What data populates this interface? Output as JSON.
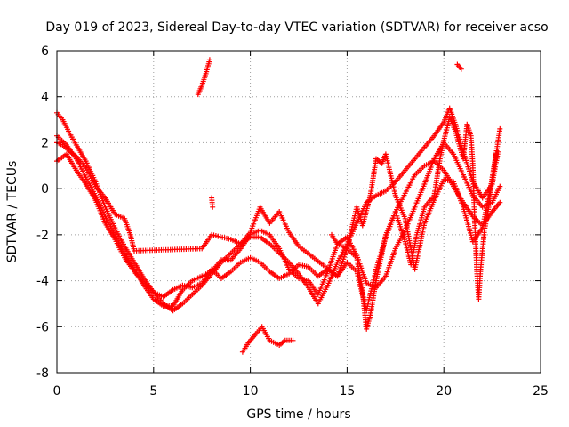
{
  "chart_data": {
    "type": "scatter",
    "title": "Day 019 of 2023, Sidereal Day-to-day VTEC variation (SDTVAR) for receiver acso",
    "xlabel": "GPS time / hours",
    "ylabel": "SDTVAR / TECUs",
    "xlim": [
      0,
      25
    ],
    "ylim": [
      -8,
      6
    ],
    "xticks": [
      "0",
      "5",
      "10",
      "15",
      "20",
      "25"
    ],
    "yticks": [
      "-8",
      "-6",
      "-4",
      "-2",
      "0",
      "2",
      "4",
      "6"
    ],
    "grid": true,
    "marker": "+",
    "series_color": "#ff0000",
    "series": [
      {
        "name": "s1",
        "points": [
          [
            0.0,
            3.3
          ],
          [
            0.3,
            3.0
          ],
          [
            0.6,
            2.5
          ],
          [
            1.0,
            1.9
          ],
          [
            1.5,
            1.2
          ],
          [
            2.0,
            0.3
          ],
          [
            2.5,
            -0.8
          ],
          [
            3.0,
            -1.7
          ],
          [
            3.5,
            -2.5
          ],
          [
            4.0,
            -3.2
          ],
          [
            4.5,
            -3.9
          ],
          [
            5.0,
            -4.5
          ],
          [
            5.5,
            -5.0
          ],
          [
            6.0,
            -5.3
          ],
          [
            6.5,
            -5.0
          ],
          [
            7.0,
            -4.6
          ],
          [
            7.5,
            -4.2
          ],
          [
            8.0,
            -3.7
          ],
          [
            8.5,
            -3.2
          ],
          [
            9.0,
            -2.8
          ],
          [
            9.5,
            -2.4
          ],
          [
            10.0,
            -2.1
          ],
          [
            10.5,
            -2.1
          ],
          [
            11.0,
            -2.4
          ],
          [
            11.5,
            -2.8
          ],
          [
            12.0,
            -3.2
          ],
          [
            12.5,
            -3.7
          ],
          [
            13.0,
            -4.3
          ],
          [
            13.5,
            -5.0
          ],
          [
            14.0,
            -4.2
          ],
          [
            14.5,
            -3.2
          ],
          [
            15.0,
            -2.4
          ],
          [
            15.5,
            -1.5
          ],
          [
            16.0,
            -0.6
          ],
          [
            16.5,
            -0.3
          ],
          [
            17.0,
            -0.1
          ],
          [
            17.5,
            0.3
          ],
          [
            18.0,
            0.8
          ],
          [
            18.5,
            1.3
          ],
          [
            19.0,
            1.8
          ],
          [
            19.5,
            2.3
          ],
          [
            20.0,
            2.9
          ],
          [
            20.3,
            3.5
          ],
          [
            20.6,
            2.8
          ],
          [
            21.0,
            1.6
          ],
          [
            21.5,
            0.3
          ],
          [
            22.0,
            -0.4
          ],
          [
            22.5,
            0.2
          ],
          [
            22.8,
            1.6
          ]
        ]
      },
      {
        "name": "s2",
        "points": [
          [
            0.0,
            2.3
          ],
          [
            0.5,
            1.9
          ],
          [
            1.0,
            1.3
          ],
          [
            1.5,
            0.5
          ],
          [
            2.0,
            -0.3
          ],
          [
            2.5,
            -1.2
          ],
          [
            3.0,
            -2.0
          ],
          [
            3.5,
            -2.8
          ],
          [
            4.0,
            -3.5
          ],
          [
            4.5,
            -4.2
          ],
          [
            5.0,
            -4.8
          ],
          [
            5.5,
            -5.1
          ],
          [
            6.0,
            -5.1
          ],
          [
            6.5,
            -4.4
          ],
          [
            7.0,
            -4.0
          ],
          [
            7.5,
            -3.8
          ],
          [
            8.0,
            -3.6
          ],
          [
            8.5,
            -3.1
          ],
          [
            9.0,
            -3.1
          ],
          [
            9.5,
            -2.6
          ],
          [
            10.0,
            -2.0
          ],
          [
            10.5,
            -1.8
          ],
          [
            11.0,
            -2.0
          ],
          [
            11.5,
            -2.6
          ],
          [
            12.0,
            -3.5
          ],
          [
            12.5,
            -3.9
          ],
          [
            13.0,
            -4.0
          ],
          [
            13.5,
            -4.6
          ],
          [
            14.0,
            -3.6
          ],
          [
            14.5,
            -2.4
          ],
          [
            15.0,
            -2.1
          ],
          [
            15.5,
            -2.9
          ],
          [
            16.0,
            -4.1
          ],
          [
            16.5,
            -4.3
          ],
          [
            17.0,
            -3.8
          ],
          [
            17.5,
            -2.6
          ],
          [
            18.0,
            -1.8
          ],
          [
            18.5,
            -0.8
          ],
          [
            19.0,
            0.2
          ],
          [
            19.5,
            1.3
          ],
          [
            20.0,
            2.0
          ],
          [
            20.5,
            1.5
          ],
          [
            21.0,
            0.6
          ],
          [
            21.5,
            -0.3
          ],
          [
            22.0,
            -0.8
          ],
          [
            22.5,
            -0.6
          ],
          [
            22.9,
            0.1
          ]
        ]
      },
      {
        "name": "s3",
        "points": [
          [
            0.0,
            1.2
          ],
          [
            0.5,
            1.5
          ],
          [
            1.0,
            0.8
          ],
          [
            1.5,
            0.2
          ],
          [
            2.0,
            -0.5
          ],
          [
            2.5,
            -1.5
          ],
          [
            3.0,
            -2.2
          ],
          [
            3.5,
            -3.0
          ],
          [
            4.0,
            -3.6
          ],
          [
            4.5,
            -4.1
          ],
          [
            5.0,
            -4.5
          ],
          [
            5.5,
            -4.7
          ],
          [
            6.0,
            -4.4
          ],
          [
            6.5,
            -4.2
          ],
          [
            7.0,
            -4.3
          ],
          [
            7.5,
            -4.1
          ],
          [
            8.0,
            -3.5
          ],
          [
            8.5,
            -3.9
          ],
          [
            9.0,
            -3.6
          ],
          [
            9.5,
            -3.2
          ],
          [
            10.0,
            -3.0
          ],
          [
            10.5,
            -3.2
          ],
          [
            11.0,
            -3.6
          ],
          [
            11.5,
            -3.9
          ],
          [
            12.0,
            -3.7
          ],
          [
            12.5,
            -3.3
          ],
          [
            13.0,
            -3.4
          ],
          [
            13.5,
            -3.8
          ],
          [
            14.0,
            -3.5
          ],
          [
            14.5,
            -3.8
          ],
          [
            15.0,
            -3.2
          ],
          [
            15.5,
            -3.6
          ],
          [
            16.0,
            -5.3
          ],
          [
            16.5,
            -3.5
          ],
          [
            17.0,
            -2.1
          ],
          [
            17.5,
            -1.0
          ],
          [
            18.0,
            -0.2
          ],
          [
            18.5,
            0.6
          ],
          [
            19.0,
            1.0
          ],
          [
            19.5,
            1.2
          ],
          [
            20.0,
            0.8
          ],
          [
            20.5,
            0.1
          ],
          [
            21.0,
            -0.6
          ],
          [
            21.5,
            -1.2
          ],
          [
            22.0,
            -1.6
          ],
          [
            22.5,
            -1.0
          ],
          [
            22.9,
            -0.6
          ]
        ]
      },
      {
        "name": "s4",
        "points": [
          [
            0.0,
            2.0
          ],
          [
            0.3,
            1.9
          ],
          [
            0.7,
            1.6
          ],
          [
            1.0,
            1.4
          ],
          [
            1.5,
            0.9
          ],
          [
            2.0,
            0.1
          ],
          [
            2.5,
            -0.4
          ],
          [
            3.0,
            -1.1
          ],
          [
            3.5,
            -1.3
          ],
          [
            3.8,
            -2.0
          ],
          [
            4.0,
            -2.7
          ],
          [
            7.5,
            -2.6
          ],
          [
            8.0,
            -2.0
          ],
          [
            9.0,
            -2.2
          ],
          [
            9.5,
            -2.4
          ],
          [
            10.0,
            -1.9
          ],
          [
            10.5,
            -0.8
          ],
          [
            11.0,
            -1.5
          ],
          [
            11.5,
            -1.0
          ],
          [
            12.0,
            -1.9
          ],
          [
            12.5,
            -2.5
          ],
          [
            14.5,
            -3.8
          ],
          [
            15.0,
            -2.6
          ],
          [
            15.5,
            -0.8
          ],
          [
            15.8,
            -1.6
          ],
          [
            16.2,
            -0.3
          ],
          [
            16.5,
            1.3
          ],
          [
            16.8,
            1.1
          ],
          [
            17.0,
            1.5
          ],
          [
            17.5,
            -0.3
          ],
          [
            18.0,
            -1.3
          ],
          [
            18.5,
            -3.5
          ],
          [
            19.0,
            -1.5
          ],
          [
            19.5,
            -0.5
          ],
          [
            20.0,
            0.4
          ],
          [
            20.5,
            0.3
          ],
          [
            21.0,
            -0.8
          ],
          [
            21.5,
            -2.3
          ],
          [
            22.0,
            -1.7
          ],
          [
            22.5,
            0.4
          ],
          [
            22.9,
            2.6
          ]
        ]
      },
      {
        "name": "s5",
        "points": [
          [
            14.2,
            -2.0
          ],
          [
            14.5,
            -2.4
          ],
          [
            15.0,
            -2.6
          ],
          [
            15.5,
            -3.0
          ],
          [
            15.8,
            -4.5
          ],
          [
            16.0,
            -6.1
          ],
          [
            16.2,
            -5.5
          ],
          [
            16.5,
            -4.0
          ],
          [
            16.8,
            -2.8
          ],
          [
            17.0,
            -2.0
          ],
          [
            17.5,
            -1.0
          ],
          [
            18.0,
            -2.3
          ],
          [
            18.3,
            -3.3
          ],
          [
            18.6,
            -2.0
          ],
          [
            19.0,
            -0.8
          ],
          [
            19.5,
            -0.3
          ],
          [
            19.8,
            1.3
          ],
          [
            20.0,
            2.1
          ],
          [
            20.3,
            3.1
          ],
          [
            20.6,
            2.5
          ],
          [
            21.0,
            1.3
          ],
          [
            21.2,
            2.8
          ],
          [
            21.4,
            2.3
          ],
          [
            21.5,
            1.0
          ],
          [
            21.6,
            -1.5
          ],
          [
            21.7,
            -3.5
          ],
          [
            21.8,
            -4.8
          ],
          [
            21.9,
            -3.5
          ],
          [
            22.1,
            -1.8
          ],
          [
            22.3,
            -0.9
          ],
          [
            22.5,
            0.5
          ],
          [
            22.7,
            1.5
          ]
        ]
      },
      {
        "name": "s6",
        "points": [
          [
            7.3,
            4.1
          ],
          [
            7.5,
            4.5
          ],
          [
            7.7,
            5.0
          ],
          [
            7.9,
            5.6
          ]
        ]
      },
      {
        "name": "s7",
        "points": [
          [
            20.7,
            5.4
          ],
          [
            20.9,
            5.2
          ]
        ]
      },
      {
        "name": "s8",
        "points": [
          [
            9.6,
            -7.1
          ],
          [
            9.9,
            -6.7
          ],
          [
            10.3,
            -6.3
          ],
          [
            10.6,
            -6.0
          ],
          [
            11.0,
            -6.6
          ],
          [
            11.5,
            -6.8
          ],
          [
            11.8,
            -6.6
          ],
          [
            12.2,
            -6.6
          ]
        ]
      },
      {
        "name": "s9",
        "points": [
          [
            8.0,
            -0.4
          ],
          [
            8.05,
            -0.8
          ]
        ]
      }
    ]
  }
}
